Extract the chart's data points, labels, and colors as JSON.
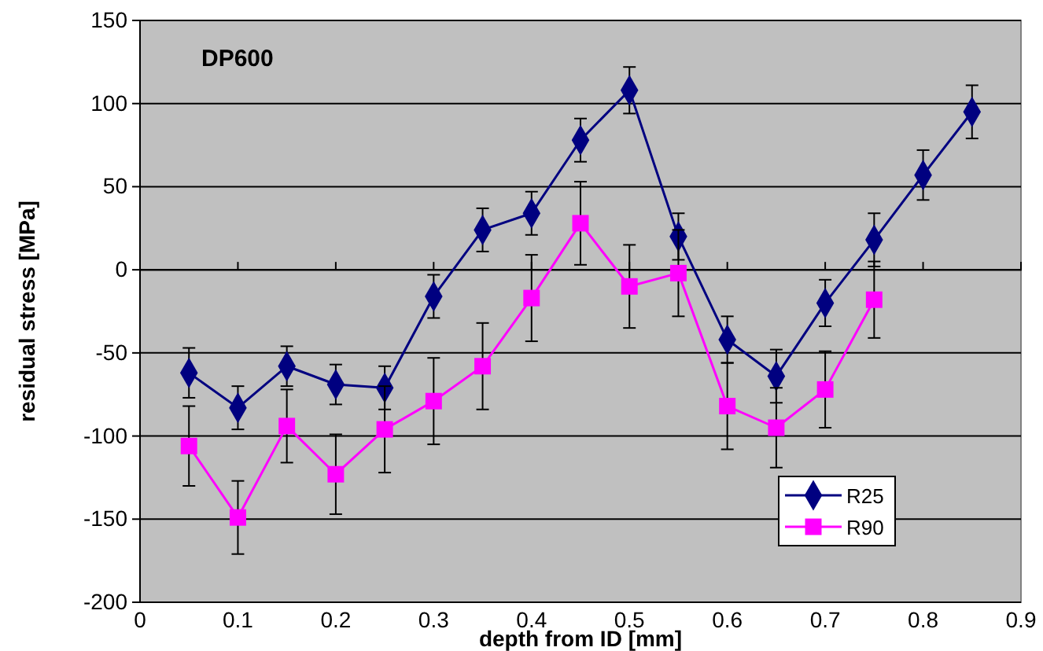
{
  "chart_data": {
    "type": "line",
    "title": "DP600",
    "xlabel": "depth from ID [mm]",
    "ylabel": "residual stress [MPa]",
    "x": [
      0.05,
      0.1,
      0.15,
      0.2,
      0.25,
      0.3,
      0.35,
      0.4,
      0.45,
      0.5,
      0.55,
      0.6,
      0.65,
      0.7,
      0.75,
      0.8,
      0.85
    ],
    "series": [
      {
        "name": "R25",
        "color": "#000080",
        "marker": "diamond",
        "values": [
          -62,
          -83,
          -58,
          -69,
          -71,
          -16,
          24,
          34,
          78,
          108,
          20,
          -42,
          -64,
          -20,
          18,
          57,
          95
        ],
        "errors": [
          15,
          13,
          12,
          12,
          13,
          13,
          13,
          13,
          13,
          14,
          14,
          14,
          16,
          14,
          16,
          15,
          16
        ]
      },
      {
        "name": "R90",
        "color": "#ff00ff",
        "marker": "square",
        "values": [
          -106,
          -149,
          -94,
          -123,
          -96,
          -79,
          -58,
          -17,
          28,
          -10,
          -2,
          -82,
          -95,
          -72,
          -18,
          null,
          null
        ],
        "errors": [
          24,
          22,
          22,
          24,
          26,
          26,
          26,
          26,
          25,
          25,
          26,
          26,
          24,
          23,
          23,
          null,
          null
        ]
      }
    ],
    "xlim": [
      0,
      0.9
    ],
    "xticks": [
      0,
      0.1,
      0.2,
      0.3,
      0.4,
      0.5,
      0.6,
      0.7,
      0.8,
      0.9
    ],
    "ylim": [
      -200,
      150
    ],
    "yticks": [
      -200,
      -150,
      -100,
      -50,
      0,
      50,
      100,
      150
    ],
    "grid": "y",
    "legend": "bottom right"
  }
}
